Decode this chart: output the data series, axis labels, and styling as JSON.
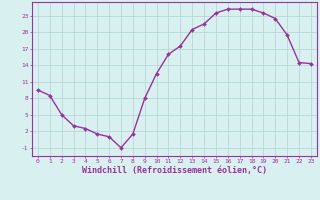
{
  "x": [
    0,
    1,
    2,
    3,
    4,
    5,
    6,
    7,
    8,
    9,
    10,
    11,
    12,
    13,
    14,
    15,
    16,
    17,
    18,
    19,
    20,
    21,
    22,
    23
  ],
  "y": [
    9.5,
    8.5,
    5.0,
    3.0,
    2.5,
    1.5,
    1.0,
    -1.0,
    1.5,
    8.0,
    12.5,
    16.0,
    17.5,
    20.5,
    21.5,
    23.5,
    24.2,
    24.2,
    24.2,
    23.5,
    22.5,
    19.5,
    14.5,
    14.3
  ],
  "line_color": "#993399",
  "marker": "D",
  "marker_size": 2,
  "bg_color": "#d8f0f0",
  "grid_color": "#b0d4d4",
  "xlabel": "Windchill (Refroidissement éolien,°C)",
  "ylabel_ticks": [
    -1,
    2,
    5,
    8,
    11,
    14,
    17,
    20,
    23
  ],
  "xticks": [
    0,
    1,
    2,
    3,
    4,
    5,
    6,
    7,
    8,
    9,
    10,
    11,
    12,
    13,
    14,
    15,
    16,
    17,
    18,
    19,
    20,
    21,
    22,
    23
  ],
  "xlim": [
    -0.5,
    23.5
  ],
  "ylim": [
    -2.5,
    25.5
  ],
  "axis_color": "#993399",
  "tick_fontsize": 4.5,
  "xlabel_fontsize": 6.0,
  "line_width": 1.0
}
